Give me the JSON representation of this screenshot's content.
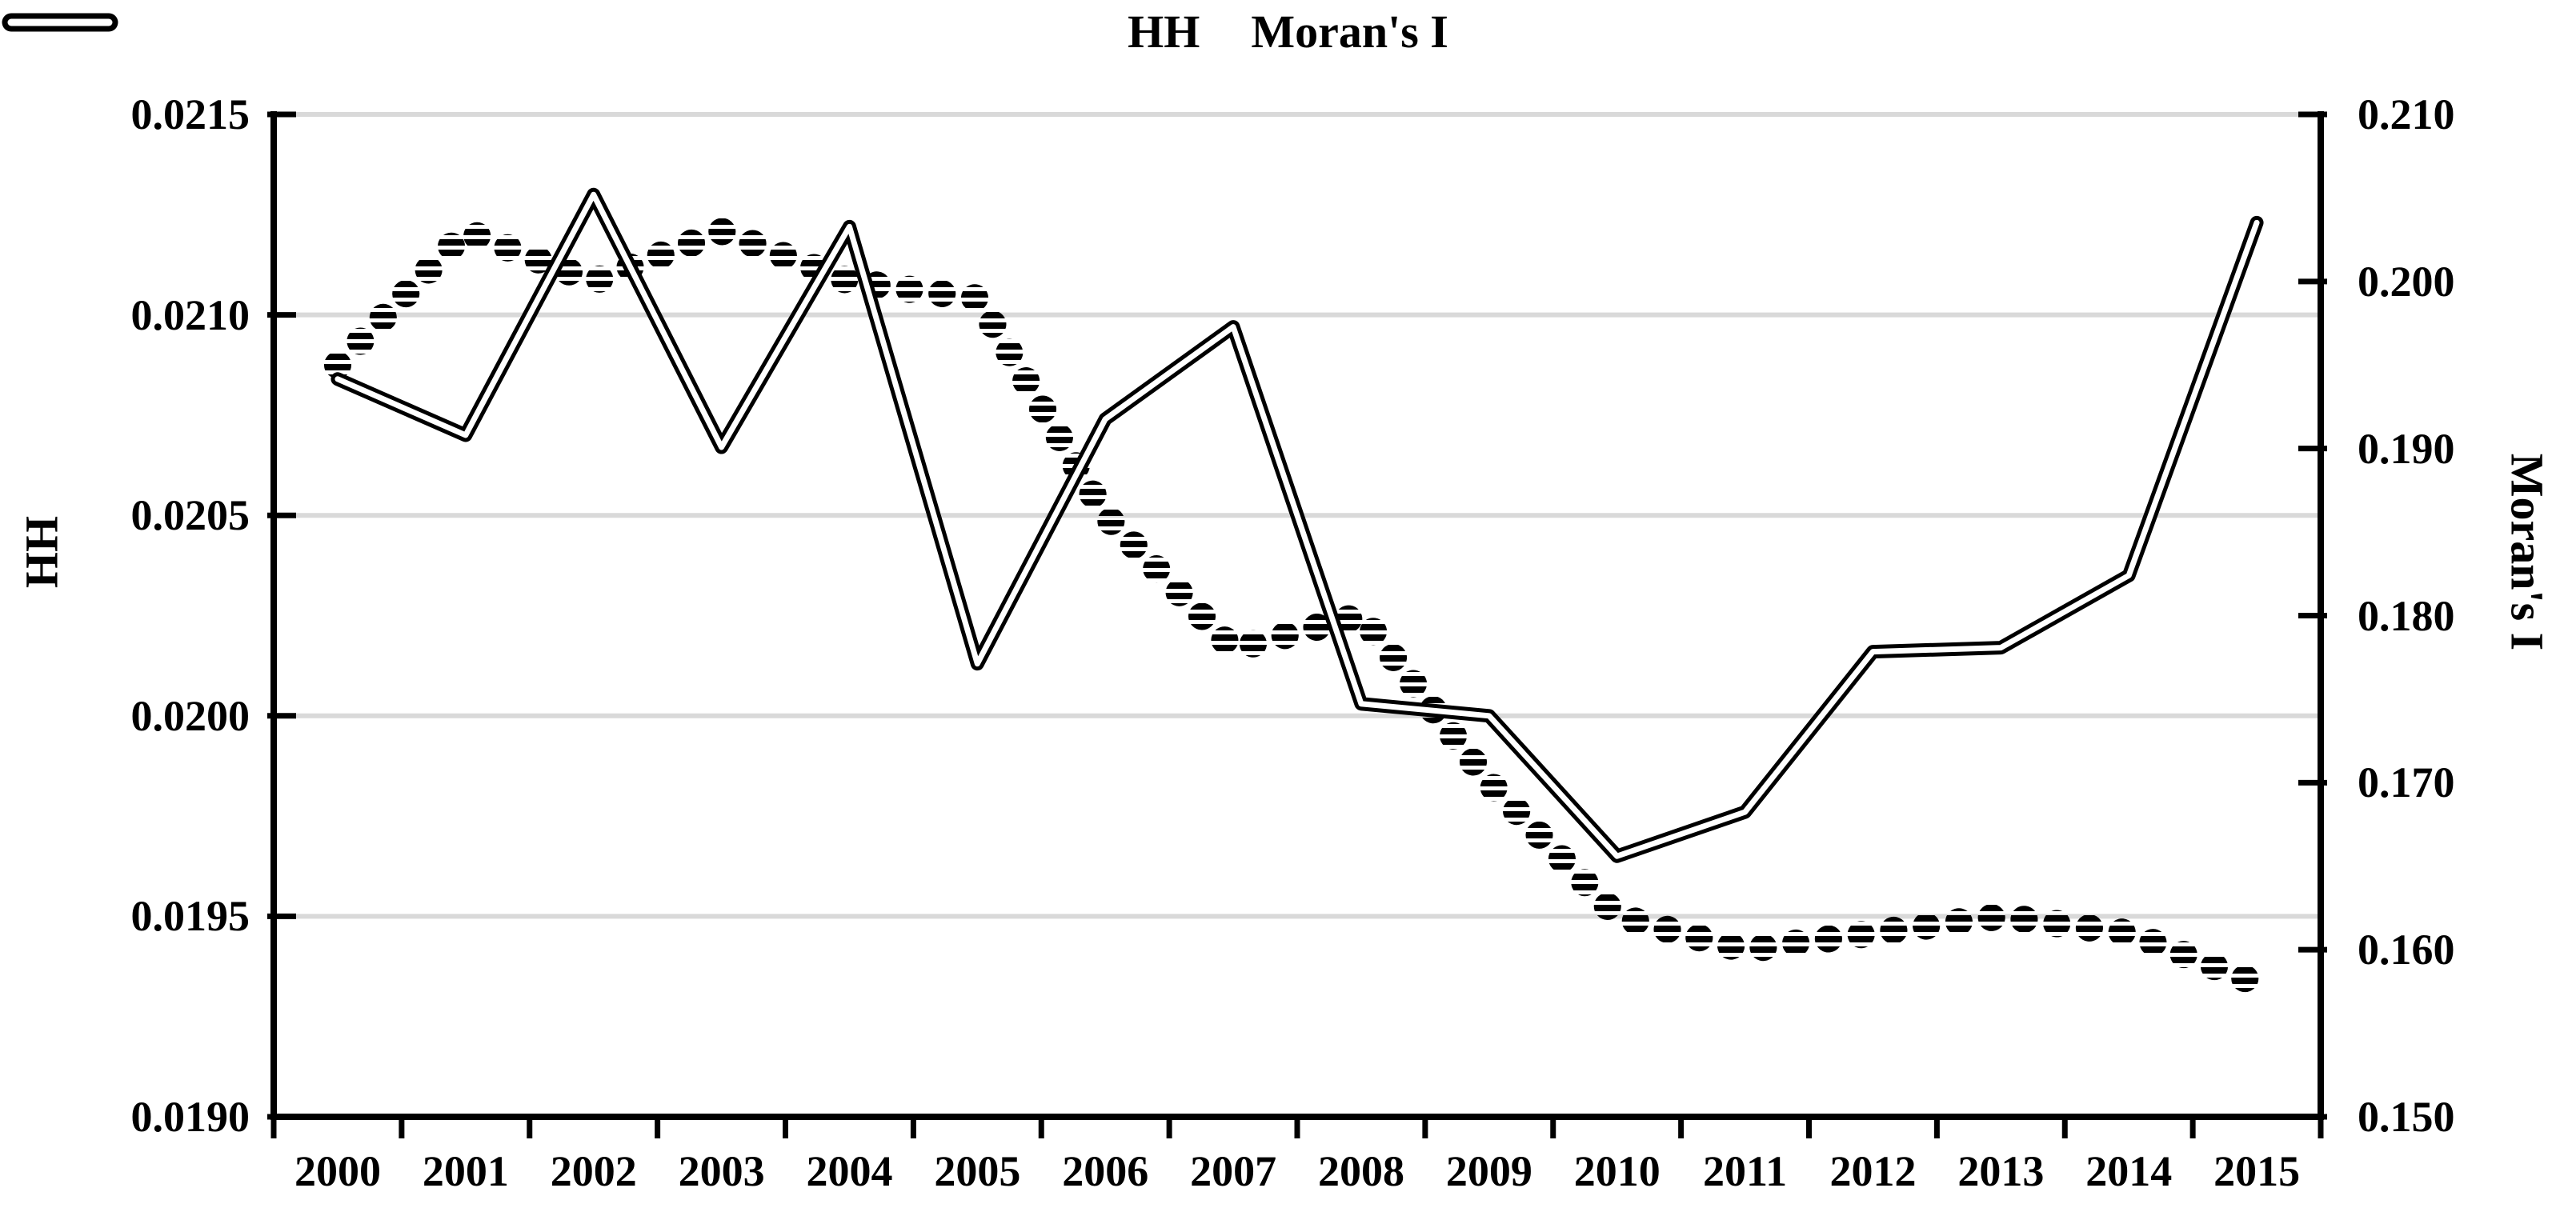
{
  "chart_data": {
    "type": "line",
    "title": "",
    "categories": [
      "2000",
      "2001",
      "2002",
      "2003",
      "2004",
      "2005",
      "2006",
      "2007",
      "2008",
      "2009",
      "2010",
      "2011",
      "2012",
      "2013",
      "2014",
      "2015"
    ],
    "series": [
      {
        "name": "HH",
        "axis": "left",
        "style": "double-solid-black-line",
        "values": [
          0.02084,
          0.0207,
          0.0213,
          0.02067,
          0.02122,
          0.02013,
          0.02074,
          0.02097,
          0.02003,
          0.02,
          0.01965,
          0.01976,
          0.02016,
          0.02017,
          0.02035,
          0.02123
        ]
      },
      {
        "name": "Moran's I",
        "axis": "right",
        "style": "striped-dotted-black-line",
        "values": [
          0.195,
          0.203,
          0.2,
          0.203,
          0.2,
          0.199,
          0.186,
          0.178,
          0.18,
          0.17,
          0.162,
          0.16,
          0.161,
          0.162,
          0.161,
          0.158
        ]
      }
    ],
    "left_axis": {
      "title": "HH",
      "min": 0.019,
      "max": 0.0215,
      "tick_step": 0.0005,
      "tick_labels": [
        "0.0215",
        "0.0210",
        "0.0205",
        "0.0200",
        "0.0195",
        "0.0190"
      ]
    },
    "right_axis": {
      "title": "Moran's I",
      "min": 0.15,
      "max": 0.21,
      "tick_step": 0.01,
      "tick_labels": [
        "0.210",
        "0.200",
        "0.190",
        "0.180",
        "0.170",
        "0.160",
        "0.150"
      ]
    },
    "x_axis": {
      "tick_labels": [
        "2000",
        "2001",
        "2002",
        "2003",
        "2004",
        "2005",
        "2006",
        "2007",
        "2008",
        "2009",
        "2010",
        "2011",
        "2012",
        "2013",
        "2014",
        "2015"
      ]
    },
    "legend_position": "top-center",
    "grid": "horizontal-gridlines-on",
    "colors": {
      "line": "#000000",
      "grid": "#d9d9d9",
      "background": "#ffffff"
    }
  }
}
